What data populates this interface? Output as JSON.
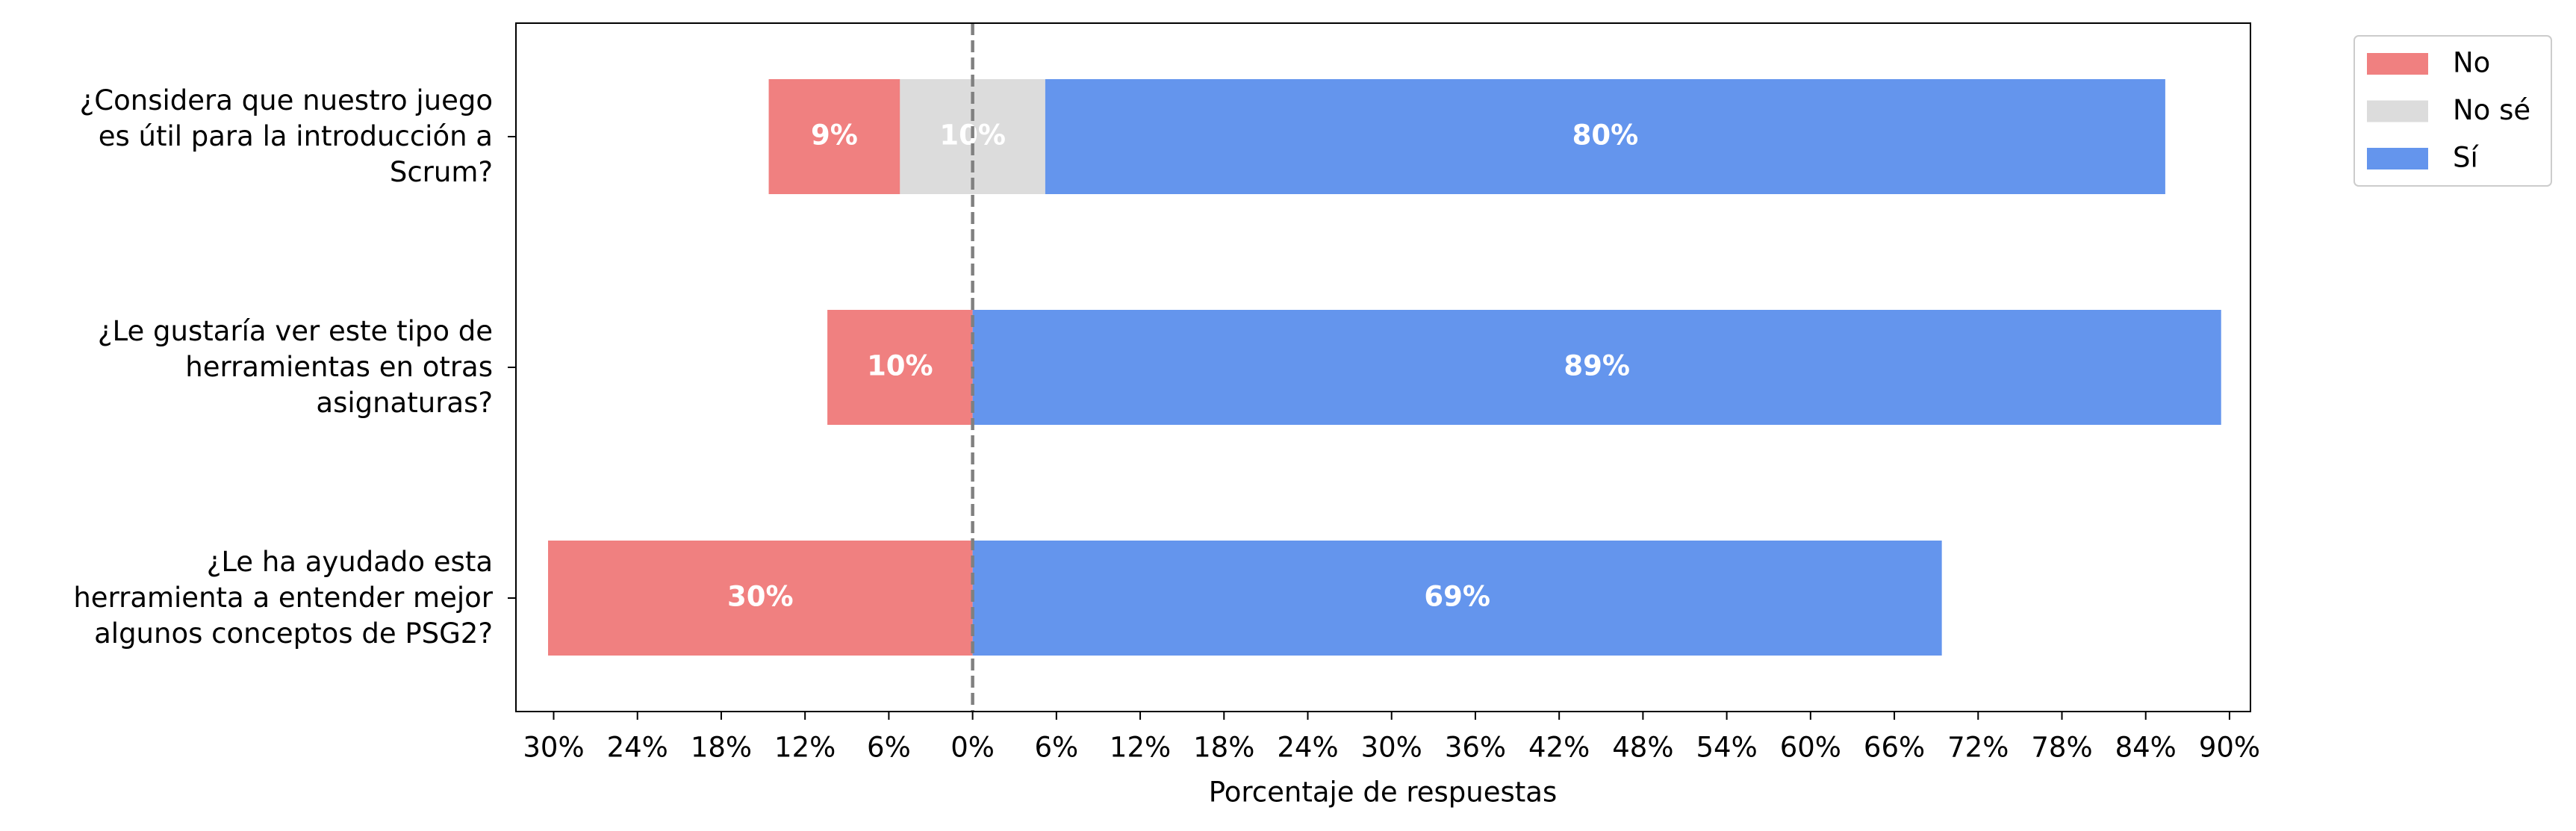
{
  "chart_data": {
    "type": "diverging-bar",
    "xlabel": "Porcentaje de respuestas",
    "categories": [
      "¿Considera que nuestro juego\nes útil para la introducción a\nScrum?",
      "¿Le gustaría ver este tipo de\nherramientas en otras\nasignaturas?",
      "¿Le ha ayudado esta\nherramienta a entender mejor\nalgunos conceptos de PSG2?"
    ],
    "series": [
      {
        "name": "No",
        "color": "#f08080",
        "values": [
          9.4,
          10.4,
          30.4
        ],
        "value_labels": [
          "9%",
          "10%",
          "30%"
        ]
      },
      {
        "name": "No sé",
        "color": "#dcdcdc",
        "values": [
          10.4,
          null,
          null
        ],
        "value_labels": [
          "10%",
          null,
          null
        ]
      },
      {
        "name": "Sí",
        "color": "#6495ed",
        "values": [
          80.2,
          89.4,
          69.4
        ],
        "value_labels": [
          "80%",
          "89%",
          "69%"
        ]
      }
    ],
    "xlim": [
      -32.7,
      91.5
    ],
    "xticks": [
      {
        "value": -30,
        "label": "30%"
      },
      {
        "value": -24,
        "label": "24%"
      },
      {
        "value": -18,
        "label": "18%"
      },
      {
        "value": -12,
        "label": "12%"
      },
      {
        "value": -6,
        "label": "6%"
      },
      {
        "value": 0,
        "label": "0%"
      },
      {
        "value": 6,
        "label": "6%"
      },
      {
        "value": 12,
        "label": "12%"
      },
      {
        "value": 18,
        "label": "18%"
      },
      {
        "value": 24,
        "label": "24%"
      },
      {
        "value": 30,
        "label": "30%"
      },
      {
        "value": 36,
        "label": "36%"
      },
      {
        "value": 42,
        "label": "42%"
      },
      {
        "value": 48,
        "label": "48%"
      },
      {
        "value": 54,
        "label": "54%"
      },
      {
        "value": 60,
        "label": "60%"
      },
      {
        "value": 66,
        "label": "66%"
      },
      {
        "value": 72,
        "label": "72%"
      },
      {
        "value": 78,
        "label": "78%"
      },
      {
        "value": 84,
        "label": "84%"
      },
      {
        "value": 90,
        "label": "90%"
      }
    ],
    "legend": "upper-right-outside"
  }
}
